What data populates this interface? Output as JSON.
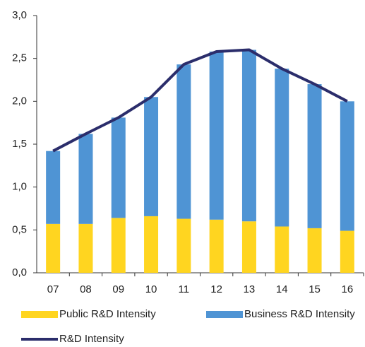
{
  "chart_data": {
    "type": "bar",
    "categories": [
      "07",
      "08",
      "09",
      "10",
      "11",
      "12",
      "13",
      "14",
      "15",
      "16"
    ],
    "series": [
      {
        "name": "Public R&D Intensity",
        "type": "bar",
        "color": "#ffd520",
        "values": [
          0.57,
          0.57,
          0.64,
          0.66,
          0.63,
          0.62,
          0.6,
          0.54,
          0.52,
          0.49
        ]
      },
      {
        "name": "Business R&D Intensity",
        "type": "bar",
        "color": "#4f94d4",
        "values": [
          0.85,
          1.05,
          1.17,
          1.39,
          1.8,
          1.96,
          2.0,
          1.84,
          1.68,
          1.51
        ]
      },
      {
        "name": "R&D Intensity",
        "type": "line",
        "color": "#2b2d6b",
        "values": [
          1.42,
          1.62,
          1.81,
          2.05,
          2.43,
          2.58,
          2.6,
          2.38,
          2.2,
          2.0
        ]
      }
    ],
    "stacked": true,
    "ylim": [
      0,
      3
    ],
    "yticks": [
      {
        "value": 0,
        "label": "0,0"
      },
      {
        "value": 0.5,
        "label": "0,5"
      },
      {
        "value": 1,
        "label": "1,0"
      },
      {
        "value": 1.5,
        "label": "1,5"
      },
      {
        "value": 2,
        "label": "2,0"
      },
      {
        "value": 2.5,
        "label": "2,5"
      },
      {
        "value": 3,
        "label": "3,0"
      }
    ],
    "grid": false
  }
}
